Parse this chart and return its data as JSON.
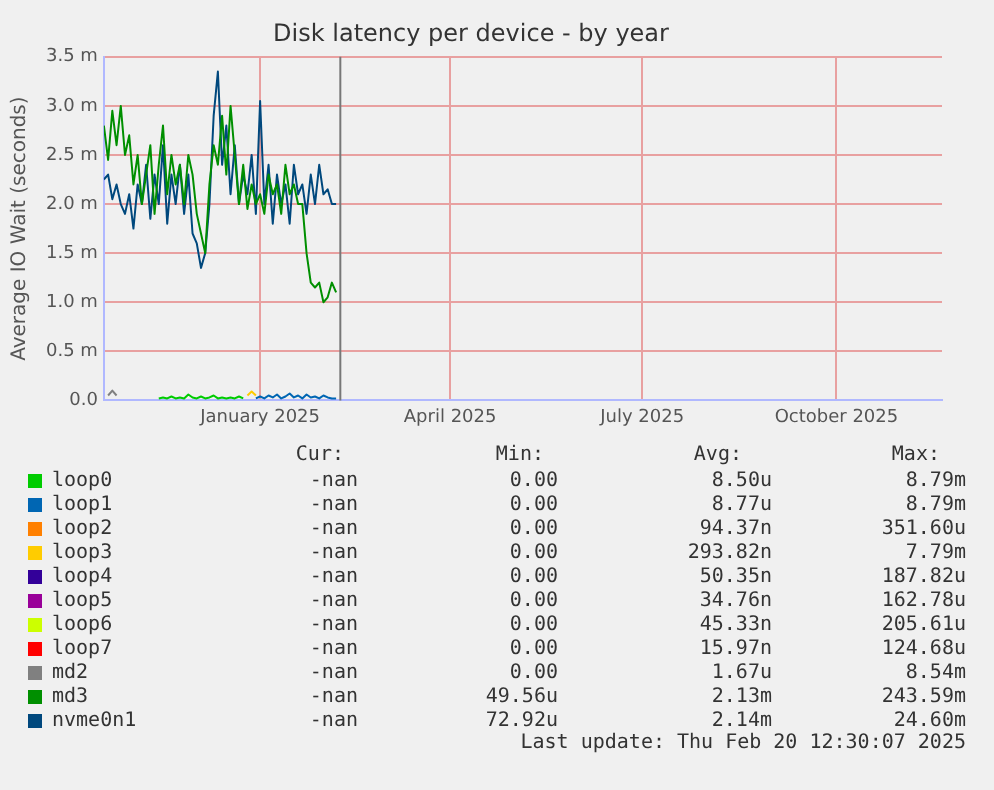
{
  "chart_data": {
    "type": "line",
    "title": "Disk latency per device - by year",
    "ylabel": "Average IO Wait (seconds)",
    "x": [
      "2024-10-19",
      "2024-10-21",
      "2024-10-23",
      "2024-10-25",
      "2024-10-27",
      "2024-10-29",
      "2024-10-31",
      "2024-11-02",
      "2024-11-04",
      "2024-11-06",
      "2024-11-08",
      "2024-11-10",
      "2024-11-12",
      "2024-11-14",
      "2024-11-16",
      "2024-11-18",
      "2024-11-20",
      "2024-11-22",
      "2024-11-24",
      "2024-11-26",
      "2024-11-28",
      "2024-11-30",
      "2024-12-02",
      "2024-12-04",
      "2024-12-06",
      "2024-12-08",
      "2024-12-10",
      "2024-12-12",
      "2024-12-14",
      "2024-12-16",
      "2024-12-18",
      "2024-12-20",
      "2024-12-22",
      "2024-12-24",
      "2024-12-26",
      "2024-12-28",
      "2024-12-30",
      "2025-01-01",
      "2025-01-03",
      "2025-01-05",
      "2025-01-07",
      "2025-01-09",
      "2025-01-11",
      "2025-01-13",
      "2025-01-15",
      "2025-01-17",
      "2025-01-19",
      "2025-01-21",
      "2025-01-23",
      "2025-01-25",
      "2025-01-27",
      "2025-01-29",
      "2025-01-31",
      "2025-02-02",
      "2025-02-04",
      "2025-02-06"
    ],
    "series": [
      {
        "name": "loop0",
        "color": "#00cc00",
        "values": [
          null,
          null,
          null,
          null,
          null,
          null,
          null,
          null,
          null,
          null,
          null,
          null,
          null,
          0.02,
          0.03,
          0.02,
          0.04,
          0.02,
          0.03,
          0.02,
          0.06,
          0.03,
          0.02,
          0.04,
          0.02,
          0.03,
          0.05,
          0.02,
          0.03,
          0.02,
          0.03,
          0.02,
          0.04,
          0.02,
          null,
          null,
          null,
          null,
          null,
          null,
          null,
          null,
          null,
          null,
          null,
          null,
          null,
          null,
          null,
          null,
          null,
          null,
          null,
          null,
          null,
          null
        ]
      },
      {
        "name": "loop1",
        "color": "#0066b3",
        "values": [
          null,
          null,
          null,
          null,
          null,
          null,
          null,
          null,
          null,
          null,
          null,
          null,
          null,
          null,
          null,
          null,
          null,
          null,
          null,
          null,
          null,
          null,
          null,
          null,
          null,
          null,
          null,
          null,
          null,
          null,
          null,
          null,
          null,
          null,
          null,
          null,
          0.02,
          0.04,
          0.02,
          0.05,
          0.03,
          0.06,
          0.02,
          0.04,
          0.07,
          0.03,
          0.05,
          0.02,
          0.06,
          0.03,
          0.04,
          0.02,
          0.05,
          0.03,
          0.02,
          0.02
        ]
      },
      {
        "name": "loop2",
        "color": "#ff8000",
        "values": [
          null,
          null,
          null,
          null,
          null,
          null,
          null,
          null,
          null,
          null,
          null,
          null,
          null,
          null,
          null,
          null,
          null,
          null,
          null,
          null,
          null,
          null,
          null,
          null,
          null,
          null,
          null,
          null,
          null,
          null,
          null,
          null,
          null,
          null,
          null,
          null,
          null,
          null,
          null,
          null,
          null,
          null,
          null,
          null,
          null,
          null,
          null,
          null,
          null,
          null,
          null,
          null,
          null,
          null,
          null,
          null
        ]
      },
      {
        "name": "loop3",
        "color": "#ffcc00",
        "values": [
          null,
          null,
          null,
          null,
          null,
          null,
          null,
          null,
          null,
          null,
          null,
          null,
          null,
          null,
          null,
          null,
          null,
          null,
          null,
          null,
          null,
          null,
          null,
          null,
          null,
          null,
          null,
          null,
          null,
          null,
          null,
          null,
          null,
          null,
          0.05,
          0.09,
          0.05,
          null,
          null,
          null,
          null,
          null,
          null,
          null,
          null,
          null,
          null,
          null,
          null,
          null,
          null,
          null,
          null,
          null,
          null,
          null
        ]
      },
      {
        "name": "loop4",
        "color": "#330099",
        "values": [
          null,
          null,
          null,
          null,
          null,
          null,
          null,
          null,
          null,
          null,
          null,
          null,
          null,
          null,
          null,
          null,
          null,
          null,
          null,
          null,
          null,
          null,
          null,
          null,
          null,
          null,
          null,
          null,
          null,
          null,
          null,
          null,
          null,
          null,
          null,
          null,
          null,
          null,
          null,
          null,
          null,
          null,
          null,
          null,
          null,
          null,
          null,
          null,
          null,
          null,
          null,
          null,
          null,
          null,
          null,
          null
        ]
      },
      {
        "name": "loop5",
        "color": "#990099",
        "values": [
          null,
          null,
          null,
          null,
          null,
          null,
          null,
          null,
          null,
          null,
          null,
          null,
          null,
          null,
          null,
          null,
          null,
          null,
          null,
          null,
          null,
          null,
          null,
          null,
          null,
          null,
          null,
          null,
          null,
          null,
          null,
          null,
          null,
          null,
          null,
          null,
          null,
          null,
          null,
          null,
          null,
          null,
          null,
          null,
          null,
          null,
          null,
          null,
          null,
          null,
          null,
          null,
          null,
          null,
          null,
          null
        ]
      },
      {
        "name": "loop6",
        "color": "#ccff00",
        "values": [
          null,
          null,
          null,
          null,
          null,
          null,
          null,
          null,
          null,
          null,
          null,
          null,
          null,
          null,
          null,
          null,
          null,
          null,
          null,
          null,
          null,
          null,
          null,
          null,
          null,
          null,
          null,
          null,
          null,
          null,
          null,
          null,
          null,
          null,
          null,
          null,
          null,
          null,
          null,
          null,
          null,
          null,
          null,
          null,
          null,
          null,
          null,
          null,
          null,
          null,
          null,
          null,
          null,
          null,
          null,
          null
        ]
      },
      {
        "name": "loop7",
        "color": "#ff0000",
        "values": [
          null,
          null,
          null,
          null,
          null,
          null,
          null,
          null,
          null,
          null,
          null,
          null,
          null,
          null,
          null,
          null,
          null,
          null,
          null,
          null,
          null,
          null,
          null,
          null,
          null,
          null,
          null,
          null,
          null,
          null,
          null,
          null,
          null,
          null,
          null,
          null,
          null,
          null,
          null,
          null,
          null,
          null,
          null,
          null,
          null,
          null,
          null,
          null,
          null,
          null,
          null,
          null,
          null,
          null,
          null,
          null
        ]
      },
      {
        "name": "md2",
        "color": "#808080",
        "values": [
          null,
          0.05,
          0.1,
          0.05,
          null,
          null,
          null,
          null,
          null,
          null,
          null,
          null,
          null,
          null,
          null,
          null,
          null,
          null,
          null,
          null,
          null,
          null,
          null,
          null,
          null,
          null,
          null,
          null,
          null,
          null,
          null,
          null,
          null,
          null,
          null,
          null,
          null,
          null,
          null,
          null,
          null,
          null,
          null,
          null,
          null,
          null,
          null,
          null,
          null,
          null,
          null,
          null,
          null,
          null,
          null,
          null
        ]
      },
      {
        "name": "md3",
        "color": "#008f00",
        "values": [
          2.8,
          2.45,
          2.95,
          2.6,
          3.0,
          2.5,
          2.7,
          2.2,
          2.5,
          2.0,
          2.3,
          2.6,
          1.9,
          2.4,
          2.8,
          2.1,
          2.5,
          2.2,
          2.4,
          2.0,
          2.5,
          2.3,
          1.9,
          1.7,
          1.5,
          2.2,
          2.6,
          2.4,
          2.9,
          2.3,
          3.0,
          2.5,
          2.0,
          2.4,
          1.95,
          2.2,
          2.0,
          2.1,
          1.9,
          2.3,
          2.1,
          2.2,
          1.9,
          2.4,
          2.1,
          2.2,
          2.0,
          2.0,
          1.5,
          1.2,
          1.15,
          1.2,
          1.0,
          1.05,
          1.2,
          1.1
        ]
      },
      {
        "name": "nvme0n1",
        "color": "#00487d",
        "values": [
          2.25,
          2.3,
          2.05,
          2.2,
          2.0,
          1.9,
          2.1,
          1.75,
          2.2,
          2.0,
          2.4,
          1.85,
          2.3,
          2.0,
          2.6,
          1.8,
          2.3,
          2.0,
          2.4,
          1.9,
          2.3,
          1.7,
          1.6,
          1.35,
          1.5,
          2.0,
          2.9,
          3.35,
          2.4,
          2.8,
          2.1,
          2.6,
          2.0,
          2.3,
          2.1,
          2.5,
          1.9,
          3.05,
          2.0,
          2.4,
          1.8,
          2.3,
          2.0,
          2.2,
          1.8,
          2.4,
          2.1,
          2.2,
          1.9,
          2.3,
          2.0,
          2.4,
          2.1,
          2.15,
          2.0,
          2.0
        ]
      }
    ],
    "xlim": [
      "2024-10-19",
      "2025-11-20"
    ],
    "xticks": [
      {
        "value": "2025-01-01",
        "label": "January 2025"
      },
      {
        "value": "2025-04-01",
        "label": "April 2025"
      },
      {
        "value": "2025-07-01",
        "label": "July 2025"
      },
      {
        "value": "2025-10-01",
        "label": "October 2025"
      }
    ],
    "ylim": [
      0,
      3.5
    ],
    "yticks": [
      {
        "value": 0,
        "label": "0.0"
      },
      {
        "value": 0.5,
        "label": "0.5 m"
      },
      {
        "value": 1,
        "label": "1.0 m"
      },
      {
        "value": 1.5,
        "label": "1.5 m"
      },
      {
        "value": 2,
        "label": "2.0 m"
      },
      {
        "value": 2.5,
        "label": "2.5 m"
      },
      {
        "value": 3,
        "label": "3.0 m"
      },
      {
        "value": 3.5,
        "label": "3.5 m"
      }
    ],
    "ref_lines": [
      {
        "axis": "x",
        "value": "2025-02-08",
        "color": "#777777"
      }
    ],
    "grid": true,
    "legend": "bottom",
    "marker": "none",
    "line_style": "solid",
    "annotations": [
      "Cur:",
      "Min:",
      "Avg:",
      "Max:",
      "-nan",
      "0.00",
      "8.50u",
      "8.79m",
      "-nan",
      "0.00",
      "8.77u",
      "8.79m",
      "-nan",
      "0.00",
      "94.37n",
      "351.60u",
      "-nan",
      "0.00",
      "293.82n",
      "7.79m",
      "-nan",
      "0.00",
      "50.35n",
      "187.82u",
      "-nan",
      "0.00",
      "34.76n",
      "162.78u",
      "-nan",
      "0.00",
      "45.33n",
      "205.61u",
      "-nan",
      "0.00",
      "15.97n",
      "124.68u",
      "-nan",
      "0.00",
      "1.67u",
      "8.54m",
      "-nan",
      "49.56u",
      "2.13m",
      "243.59m",
      "-nan",
      "72.92u",
      "2.14m",
      "24.60m",
      "Last update: Thu Feb 20 12:30:07 2025"
    ]
  }
}
